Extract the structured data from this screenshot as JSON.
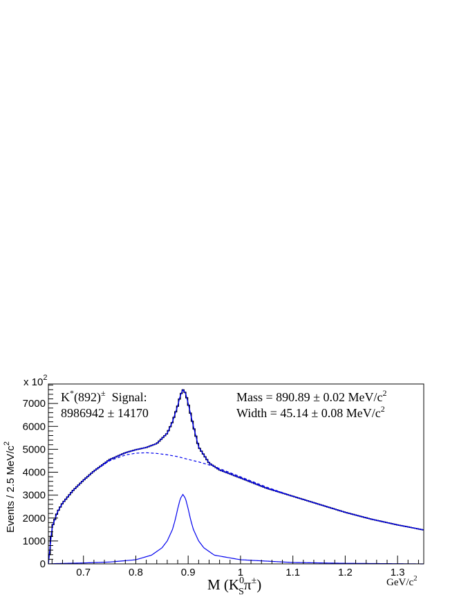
{
  "chart_data": {
    "type": "line",
    "xlim": [
      0.633,
      1.35
    ],
    "ylim": [
      0,
      7850
    ],
    "x_ticks": [
      0.7,
      0.8,
      0.9,
      1,
      1.1,
      1.2,
      1.3
    ],
    "x_tick_labels": [
      "0.7",
      "0.8",
      "0.9",
      "1",
      "1.1",
      "1.2",
      "1.3"
    ],
    "y_ticks": [
      0,
      1000,
      2000,
      3000,
      4000,
      5000,
      6000,
      7000
    ],
    "y_tick_labels": [
      "0",
      "1000",
      "2000",
      "3000",
      "4000",
      "5000",
      "6000",
      "7000"
    ],
    "y_multiplier": {
      "base": "x 10",
      "exp": "2"
    },
    "ylabel": {
      "main": "Events / 2.5 MeV/c",
      "sup": "2"
    },
    "xlabel": {
      "pre": "M (K",
      "sup": "0",
      "sub": "S",
      "mid": "π",
      "sup2": "±",
      "post": ")"
    },
    "x_unit": {
      "main": "GeV/c",
      "sup": "2"
    },
    "signal_box": {
      "line1_pre": "K",
      "line1_sup": "*",
      "line1_mid": "(892)",
      "line1_sup2": "±",
      "line1_post": "  Signal:",
      "line2": "8986942 ± 14170"
    },
    "fit_box": {
      "mass": "Mass = 890.89 ± 0.02 MeV/c",
      "mass_sup": "2",
      "width": "Width = 45.14 ± 0.08 MeV/c",
      "width_sup": "2"
    },
    "series": [
      {
        "role": "data",
        "style": "histogram",
        "color": "#000000",
        "x": [
          0.633,
          0.64,
          0.65,
          0.66,
          0.68,
          0.7,
          0.72,
          0.75,
          0.78,
          0.8,
          0.82,
          0.84,
          0.86,
          0.87,
          0.88,
          0.885,
          0.89,
          0.895,
          0.9,
          0.91,
          0.92,
          0.94,
          0.96,
          1.0,
          1.05,
          1.1,
          1.15,
          1.2,
          1.25,
          1.3,
          1.35
        ],
        "y": [
          0,
          1600,
          2250,
          2650,
          3200,
          3650,
          4050,
          4550,
          4850,
          4980,
          5080,
          5250,
          5700,
          6200,
          6900,
          7350,
          7600,
          7450,
          7000,
          6000,
          5100,
          4400,
          4100,
          3750,
          3300,
          2950,
          2600,
          2250,
          1950,
          1700,
          1480
        ]
      },
      {
        "role": "total-fit",
        "style": "solid",
        "color": "#0000ee",
        "x": [
          0.633,
          0.64,
          0.65,
          0.66,
          0.68,
          0.7,
          0.72,
          0.75,
          0.78,
          0.8,
          0.82,
          0.84,
          0.86,
          0.87,
          0.88,
          0.885,
          0.89,
          0.895,
          0.9,
          0.91,
          0.92,
          0.94,
          0.96,
          1.0,
          1.05,
          1.1,
          1.15,
          1.2,
          1.25,
          1.3,
          1.35
        ],
        "y": [
          0,
          1600,
          2250,
          2650,
          3200,
          3650,
          4050,
          4550,
          4850,
          4980,
          5080,
          5250,
          5700,
          6200,
          6900,
          7350,
          7600,
          7450,
          7000,
          6000,
          5100,
          4400,
          4100,
          3750,
          3300,
          2950,
          2600,
          2250,
          1950,
          1700,
          1480
        ]
      },
      {
        "role": "background",
        "style": "dashed",
        "color": "#0000ee",
        "x": [
          0.633,
          0.64,
          0.65,
          0.66,
          0.68,
          0.7,
          0.72,
          0.75,
          0.78,
          0.8,
          0.82,
          0.84,
          0.86,
          0.88,
          0.9,
          0.92,
          0.95,
          1.0,
          1.05,
          1.1,
          1.15,
          1.2,
          1.25,
          1.3,
          1.35
        ],
        "y": [
          0,
          1600,
          2250,
          2650,
          3200,
          3650,
          4050,
          4500,
          4750,
          4830,
          4850,
          4820,
          4760,
          4680,
          4560,
          4450,
          4250,
          3800,
          3350,
          2950,
          2600,
          2250,
          1950,
          1700,
          1480
        ]
      },
      {
        "role": "signal",
        "style": "solid",
        "color": "#0000ee",
        "x": [
          0.633,
          0.65,
          0.7,
          0.75,
          0.8,
          0.83,
          0.85,
          0.86,
          0.87,
          0.875,
          0.88,
          0.885,
          0.89,
          0.895,
          0.9,
          0.905,
          0.91,
          0.92,
          0.93,
          0.95,
          1.0,
          1.1,
          1.2,
          1.35
        ],
        "y": [
          0,
          15,
          40,
          80,
          180,
          380,
          700,
          1000,
          1500,
          1900,
          2400,
          2850,
          3030,
          2850,
          2400,
          1900,
          1500,
          1000,
          700,
          380,
          180,
          60,
          25,
          0
        ]
      }
    ]
  }
}
